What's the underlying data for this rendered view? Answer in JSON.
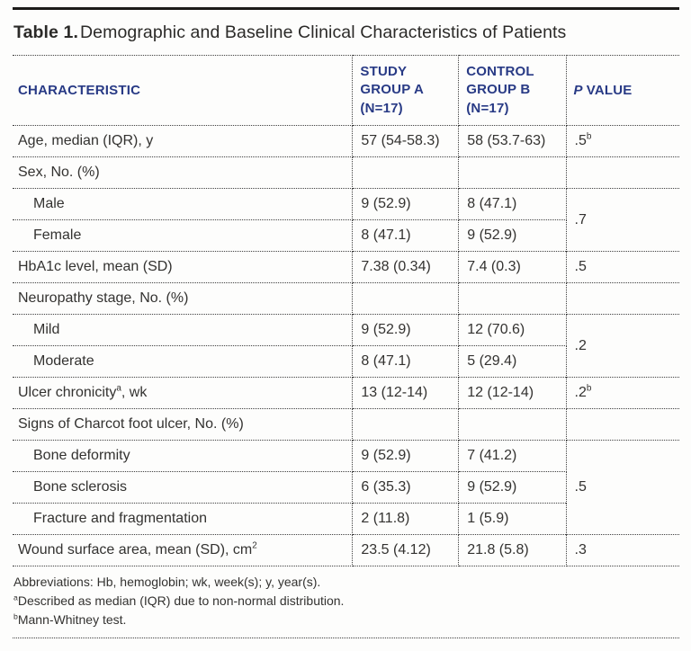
{
  "title": {
    "label": "Table 1.",
    "text": "Demographic and Baseline Clinical Characteristics of Patients"
  },
  "colors": {
    "header_text": "#283a85",
    "body_text": "#333230",
    "top_rule": "#1d1c1a",
    "dotted_border": "#3f3f3f",
    "background": "#fdfdfc"
  },
  "header": {
    "characteristic": "CHARACTERISTIC",
    "group_a_lines": [
      "STUDY",
      "GROUP A",
      "(N=17)"
    ],
    "group_b_lines": [
      "CONTROL",
      "GROUP B",
      "(N=17)"
    ],
    "p_italic": "P",
    "p_rest": "VALUE"
  },
  "rows": [
    {
      "name": "age",
      "label": "Age, median (IQR), y",
      "a": "57 (54-58.3)",
      "b": "58 (53.7-63)",
      "p": [
        {
          "t": ".5"
        },
        {
          "sup": "b"
        }
      ]
    },
    {
      "name": "sex-section",
      "section": true,
      "label": "Sex, No. (%)"
    },
    {
      "name": "male",
      "indent": true,
      "label": "Male",
      "a": "9 (52.9)",
      "b": "8 (47.1)",
      "p": ".7",
      "p_rowspan": 2
    },
    {
      "name": "female",
      "indent": true,
      "label": "Female",
      "a": "8 (47.1)",
      "b": "9 (52.9)",
      "p_skip": true
    },
    {
      "name": "hba1c",
      "label": "HbA1c level, mean (SD)",
      "a": "7.38 (0.34)",
      "b": "7.4 (0.3)",
      "p": ".5"
    },
    {
      "name": "neuropathy-section",
      "section": true,
      "label": "Neuropathy stage, No. (%)"
    },
    {
      "name": "mild",
      "indent": true,
      "label": "Mild",
      "a": "9 (52.9)",
      "b": "12 (70.6)",
      "p": ".2",
      "p_rowspan": 2
    },
    {
      "name": "moderate",
      "indent": true,
      "label": "Moderate",
      "a": "8 (47.1)",
      "b": "5 (29.4)",
      "p_skip": true
    },
    {
      "name": "ulcer-chronicity",
      "label": [
        {
          "t": "Ulcer chronicity"
        },
        {
          "sup": "a"
        },
        {
          "t": ", wk"
        }
      ],
      "a": "13 (12-14)",
      "b": "12 (12-14)",
      "p": [
        {
          "t": ".2"
        },
        {
          "sup": "b"
        }
      ]
    },
    {
      "name": "charcot-section",
      "section": true,
      "label": "Signs of Charcot foot ulcer, No. (%)"
    },
    {
      "name": "bone-deformity",
      "indent": true,
      "label": "Bone deformity",
      "a": "9 (52.9)",
      "b": "7 (41.2)",
      "p": ".5",
      "p_rowspan": 3
    },
    {
      "name": "bone-sclerosis",
      "indent": true,
      "label": "Bone sclerosis",
      "a": "6 (35.3)",
      "b": "9 (52.9)",
      "p_skip": true
    },
    {
      "name": "fracture-fragmentation",
      "indent": true,
      "label": "Fracture and fragmentation",
      "a": "2 (11.8)",
      "b": "1 (5.9)",
      "p_skip": true
    },
    {
      "name": "wound-surface-area",
      "label": [
        {
          "t": "Wound surface area, mean (SD), cm"
        },
        {
          "sup": "2"
        }
      ],
      "a": "23.5 (4.12)",
      "b": "21.8 (5.8)",
      "p": ".3"
    }
  ],
  "footnotes": [
    {
      "name": "abbreviations",
      "parts": [
        {
          "t": "Abbreviations: Hb, hemoglobin; wk, week(s); y, year(s)."
        }
      ]
    },
    {
      "name": "a",
      "parts": [
        {
          "sup": "a"
        },
        {
          "t": "Described as median (IQR) due to non-normal distribution."
        }
      ]
    },
    {
      "name": "b",
      "parts": [
        {
          "sup": "b"
        },
        {
          "t": "Mann-Whitney test."
        }
      ]
    }
  ]
}
